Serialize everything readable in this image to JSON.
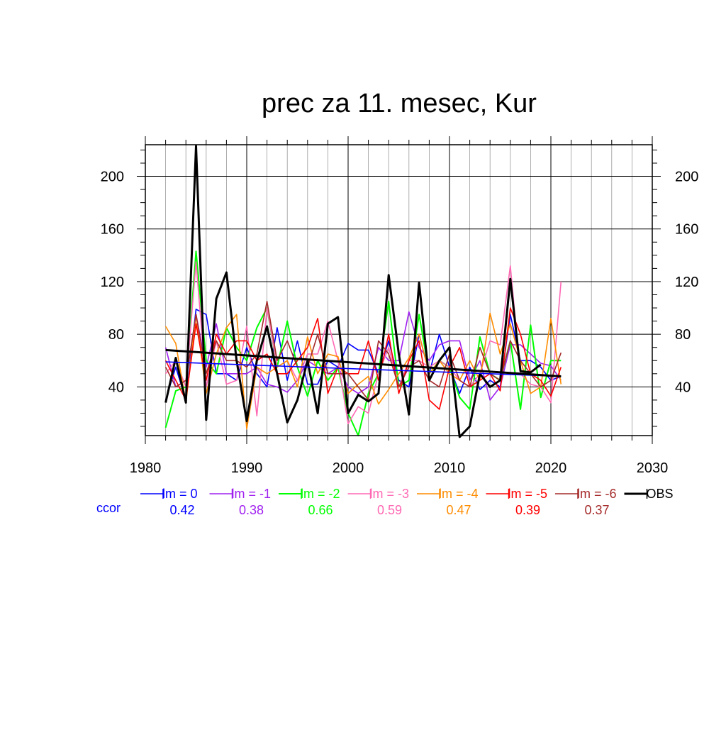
{
  "chart_data": {
    "type": "line",
    "title": "prec za 11. mesec, Kur",
    "xlabel": "",
    "ylabel": "",
    "xlim": [
      1980,
      2030
    ],
    "ylim": [
      3,
      224
    ],
    "x_ticks": [
      1980,
      1990,
      2000,
      2010,
      2020,
      2030
    ],
    "y_ticks": [
      40,
      80,
      120,
      160,
      200
    ],
    "grid": true,
    "legend_position": "bottom",
    "ccor_label": "ccor",
    "ccor_color": "#0000ff",
    "x": [
      1982,
      1983,
      1984,
      1985,
      1986,
      1987,
      1988,
      1989,
      1990,
      1991,
      1992,
      1993,
      1994,
      1995,
      1996,
      1997,
      1998,
      1999,
      2000,
      2001,
      2002,
      2003,
      2004,
      2005,
      2006,
      2007,
      2008,
      2009,
      2010,
      2011,
      2012,
      2013,
      2014,
      2015,
      2016,
      2017,
      2018,
      2019,
      2020,
      2021
    ],
    "series": [
      {
        "name": "lm = 0",
        "color": "#0000ff",
        "ccor": "0.42",
        "width": 1.6,
        "values": [
          30,
          55,
          30,
          99,
          95,
          50,
          50,
          45,
          70,
          50,
          40,
          85,
          45,
          75,
          42,
          42,
          60,
          55,
          73,
          68,
          68,
          50,
          75,
          45,
          40,
          80,
          50,
          80,
          55,
          35,
          55,
          38,
          45,
          40,
          95,
          60,
          60,
          55,
          45,
          48
        ],
        "trend": [
          59,
          48
        ]
      },
      {
        "name": "lm = -1",
        "color": "#a020f0",
        "ccor": "0.38",
        "width": 1.6,
        "values": [
          70,
          40,
          45,
          95,
          55,
          88,
          50,
          50,
          50,
          55,
          42,
          40,
          36,
          45,
          60,
          55,
          50,
          55,
          40,
          35,
          40,
          70,
          60,
          60,
          97,
          70,
          60,
          72,
          75,
          75,
          45,
          60,
          30,
          40,
          72,
          72,
          65,
          58,
          56,
          45
        ]
      },
      {
        "name": "lm = -2",
        "color": "#00ff00",
        "ccor": "0.66",
        "width": 2,
        "values": [
          9,
          37,
          40,
          143,
          60,
          50,
          85,
          70,
          60,
          85,
          100,
          55,
          90,
          55,
          33,
          60,
          45,
          55,
          20,
          3,
          35,
          50,
          105,
          40,
          45,
          95,
          50,
          60,
          55,
          32,
          23,
          78,
          50,
          45,
          75,
          23,
          87,
          32,
          60,
          60
        ]
      },
      {
        "name": "lm = -3",
        "color": "#ff69b4",
        "ccor": "0.59",
        "width": 1.6,
        "values": [
          50,
          60,
          40,
          135,
          40,
          75,
          42,
          45,
          86,
          18,
          100,
          55,
          60,
          45,
          65,
          65,
          90,
          60,
          12,
          25,
          20,
          50,
          70,
          40,
          60,
          60,
          55,
          60,
          55,
          45,
          40,
          50,
          75,
          72,
          132,
          50,
          42,
          40,
          28,
          120
        ]
      },
      {
        "name": "lm = -4",
        "color": "#ff8c00",
        "ccor": "0.47",
        "width": 1.6,
        "values": [
          86,
          73,
          28,
          95,
          35,
          65,
          85,
          95,
          8,
          55,
          50,
          55,
          60,
          40,
          78,
          50,
          65,
          63,
          35,
          42,
          48,
          27,
          38,
          50,
          62,
          80,
          50,
          60,
          50,
          45,
          60,
          45,
          96,
          65,
          88,
          60,
          35,
          40,
          92,
          42
        ]
      },
      {
        "name": "lm = -5",
        "color": "#ff0000",
        "ccor": "0.39",
        "width": 1.6,
        "values": [
          60,
          45,
          30,
          88,
          45,
          80,
          65,
          75,
          75,
          60,
          65,
          50,
          50,
          60,
          70,
          92,
          35,
          55,
          50,
          50,
          75,
          45,
          80,
          35,
          60,
          75,
          30,
          23,
          55,
          70,
          40,
          45,
          50,
          37,
          100,
          80,
          50,
          45,
          33,
          55
        ]
      },
      {
        "name": "lm = -6",
        "color": "#a52a2a",
        "ccor": "0.37",
        "width": 1.6,
        "values": [
          55,
          40,
          45,
          95,
          50,
          75,
          60,
          60,
          55,
          65,
          105,
          60,
          75,
          55,
          55,
          80,
          50,
          50,
          50,
          40,
          30,
          75,
          65,
          40,
          55,
          60,
          45,
          40,
          65,
          45,
          40,
          70,
          50,
          45,
          75,
          60,
          50,
          40,
          45,
          66
        ]
      },
      {
        "name": "OBS",
        "color": "#000000",
        "ccor": "",
        "width": 3,
        "values": [
          28,
          62,
          28,
          223,
          15,
          107,
          127,
          60,
          14,
          60,
          86,
          50,
          13,
          30,
          60,
          20,
          88,
          93,
          20,
          34,
          29,
          35,
          125,
          65,
          19,
          119,
          45,
          60,
          70,
          2,
          10,
          50,
          40,
          45,
          122,
          52,
          51,
          57,
          null,
          null
        ],
        "trend": [
          68,
          48
        ]
      }
    ]
  }
}
